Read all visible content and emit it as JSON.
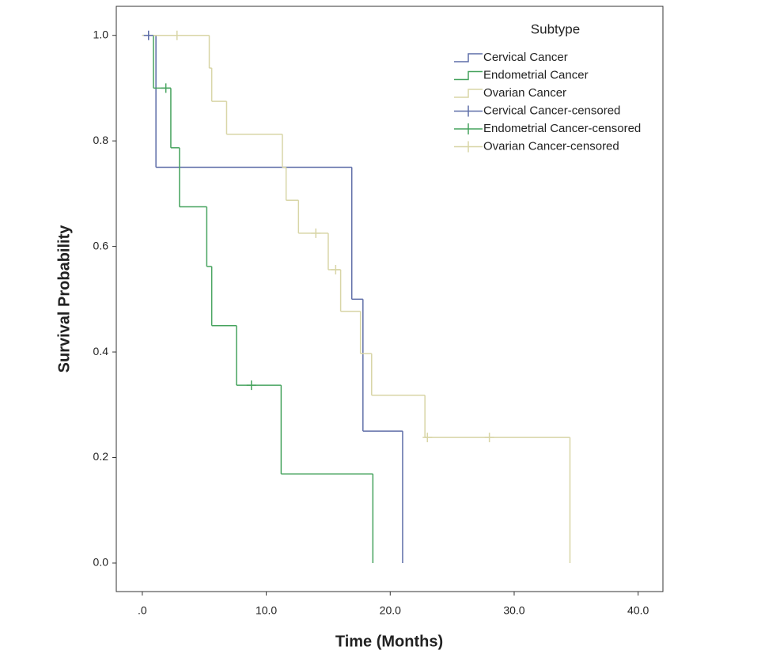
{
  "chart_data": {
    "type": "kaplan-meier",
    "legend_title": "Subtype",
    "x_label": "Time (Months)",
    "y_label": "Survival Probability",
    "xlim": [
      -2.1,
      42.0
    ],
    "ylim": [
      -0.054,
      1.055
    ],
    "xticks": [
      {
        "value": 0,
        "label": ".0"
      },
      {
        "value": 10,
        "label": "10.0"
      },
      {
        "value": 20,
        "label": "20.0"
      },
      {
        "value": 30,
        "label": "30.0"
      },
      {
        "value": 40,
        "label": "40.0"
      }
    ],
    "yticks": [
      {
        "value": 0,
        "label": "0.0"
      },
      {
        "value": 0.2,
        "label": "0.2"
      },
      {
        "value": 0.4,
        "label": "0.4"
      },
      {
        "value": 0.6,
        "label": "0.6"
      },
      {
        "value": 0.8,
        "label": "0.8"
      },
      {
        "value": 1,
        "label": "1.0"
      }
    ],
    "series": [
      {
        "name": "Cervical Cancer",
        "color": "#5f6ea8",
        "kind": "step",
        "x": [
          0,
          1.1,
          16.9,
          17.8,
          21.0
        ],
        "values": [
          1.0,
          0.75,
          0.5,
          0.25,
          0
        ]
      },
      {
        "name": "Endometrial Cancer",
        "color": "#46a35e",
        "kind": "step",
        "x": [
          0,
          0.9,
          2.3,
          3.0,
          5.2,
          5.6,
          7.6,
          11.2,
          18.6
        ],
        "values": [
          1.0,
          0.9,
          0.787,
          0.675,
          0.562,
          0.45,
          0.337,
          0.169,
          0
        ]
      },
      {
        "name": "Ovarian Cancer",
        "color": "#d8d5a6",
        "kind": "step",
        "x": [
          0,
          5.4,
          5.6,
          6.8,
          11.3,
          11.6,
          12.6,
          15.0,
          16.0,
          17.6,
          18.5,
          22.8,
          34.5
        ],
        "values": [
          1.0,
          0.938,
          0.875,
          0.8125,
          0.75,
          0.6875,
          0.625,
          0.556,
          0.477,
          0.397,
          0.318,
          0.238,
          0
        ]
      },
      {
        "name": "Cervical Cancer-censored",
        "color": "#5f6ea8",
        "kind": "censored",
        "x": [
          0.5
        ],
        "values": [
          1.0
        ]
      },
      {
        "name": "Endometrial Cancer-censored",
        "color": "#46a35e",
        "kind": "censored",
        "x": [
          1.9,
          8.8
        ],
        "values": [
          0.9,
          0.337
        ]
      },
      {
        "name": "Ovarian Cancer-censored",
        "color": "#d8d5a6",
        "kind": "censored",
        "x": [
          2.8,
          14.0,
          15.6,
          23.0,
          28.0
        ],
        "values": [
          1.0,
          0.625,
          0.556,
          0.238,
          0.238
        ]
      }
    ]
  }
}
